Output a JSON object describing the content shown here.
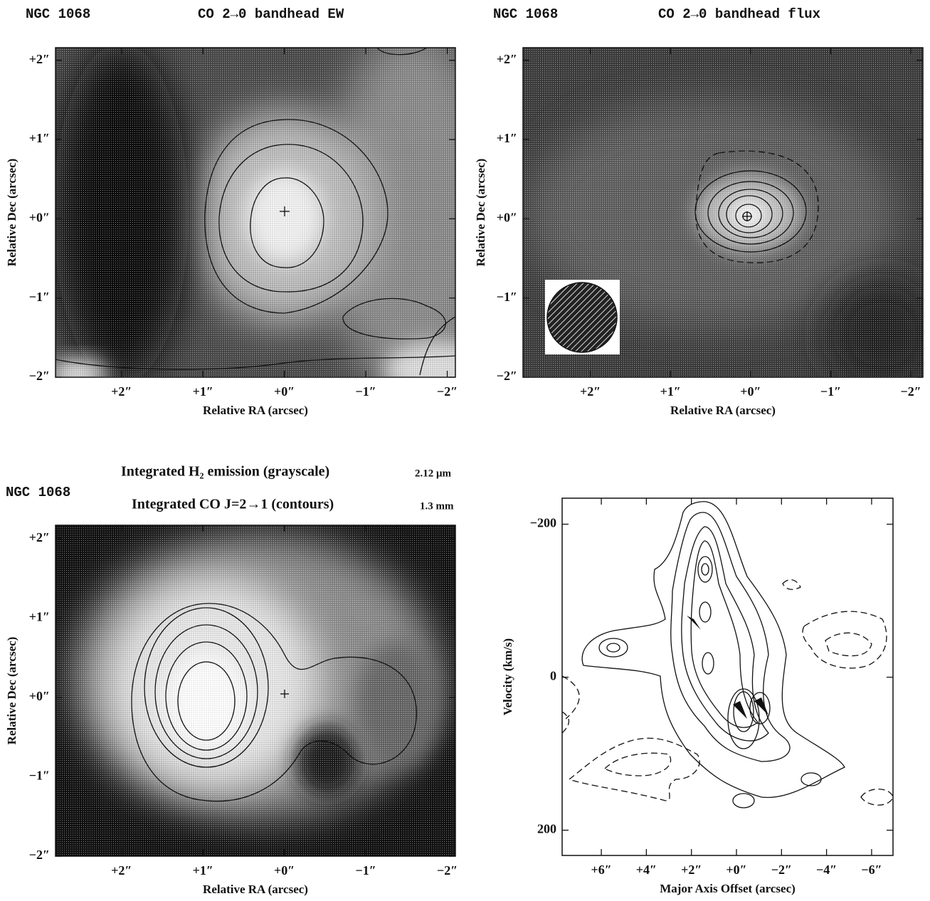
{
  "chart_data": [
    {
      "type": "image",
      "label": "NGC 1068",
      "title": "CO 2→0 bandhead EW",
      "xlabel": "Relative RA (arcsec)",
      "ylabel": "Relative Dec (arcsec)",
      "xlim": [
        2.81,
        -2.1
      ],
      "ylim": [
        -2,
        2.16
      ],
      "xticks": [
        {
          "value": 2,
          "label": "+2″"
        },
        {
          "value": 1,
          "label": "+1″"
        },
        {
          "value": 0,
          "label": "+0″"
        },
        {
          "value": -1,
          "label": "−1″"
        },
        {
          "value": -2,
          "label": "−2″"
        }
      ],
      "yticks": [
        {
          "value": 2,
          "label": "+2″"
        },
        {
          "value": 1,
          "label": "+1″"
        },
        {
          "value": 0,
          "label": "+0″"
        },
        {
          "value": -1,
          "label": "−1″"
        },
        {
          "value": -2,
          "label": "−2″"
        }
      ]
    },
    {
      "type": "image",
      "label": "NGC 1068",
      "title": "CO 2→0 bandhead flux",
      "xlabel": "Relative RA (arcsec)",
      "ylabel": "Relative Dec (arcsec)",
      "xlim": [
        2.84,
        -2.15
      ],
      "ylim": [
        -2,
        2.16
      ],
      "xticks": [
        {
          "value": 2,
          "label": "+2″"
        },
        {
          "value": 1,
          "label": "+1″"
        },
        {
          "value": 0,
          "label": "+0″"
        },
        {
          "value": -1,
          "label": "−1″"
        },
        {
          "value": -2,
          "label": "−2″"
        }
      ],
      "yticks": [
        {
          "value": 2,
          "label": "+2″"
        },
        {
          "value": 1,
          "label": "+1″"
        },
        {
          "value": 0,
          "label": "+0″"
        },
        {
          "value": -1,
          "label": "−1″"
        },
        {
          "value": -2,
          "label": "−2″"
        }
      ]
    },
    {
      "type": "image",
      "label": "NGC 1068",
      "title": "Integrated H₂ emission (grayscale)",
      "title_note": "2.12 μm",
      "subtitle": "Integrated CO J=2→1 (contours)",
      "subtitle_note": "1.3 mm",
      "xlabel": "Relative RA (arcsec)",
      "ylabel": "Relative Dec (arcsec)",
      "xlim": [
        2.81,
        -2.1
      ],
      "ylim": [
        -2,
        2.17
      ],
      "xticks": [
        {
          "value": 2,
          "label": "+2″"
        },
        {
          "value": 1,
          "label": "+1″"
        },
        {
          "value": 0,
          "label": "+0″"
        },
        {
          "value": -1,
          "label": "−1″"
        },
        {
          "value": -2,
          "label": "−2″"
        }
      ],
      "yticks": [
        {
          "value": 2,
          "label": "+2″"
        },
        {
          "value": 1,
          "label": "+1″"
        },
        {
          "value": 0,
          "label": "+0″"
        },
        {
          "value": -1,
          "label": "−1″"
        },
        {
          "value": -2,
          "label": "−2″"
        }
      ]
    },
    {
      "type": "contour",
      "xlabel": "Major Axis Offset (arcsec)",
      "ylabel": "Velocity (km/s)",
      "xlim": [
        7.74,
        -6.95
      ],
      "ylim": [
        233,
        -234
      ],
      "xticks": [
        {
          "value": 6,
          "label": "+6″"
        },
        {
          "value": 4,
          "label": "+4″"
        },
        {
          "value": 2,
          "label": "+2″"
        },
        {
          "value": 0,
          "label": "+0″"
        },
        {
          "value": -2,
          "label": "−2″"
        },
        {
          "value": -4,
          "label": "−4″"
        },
        {
          "value": -6,
          "label": "−6″"
        }
      ],
      "yticks": [
        {
          "value": -200,
          "label": "−200"
        },
        0,
        200
      ]
    }
  ]
}
